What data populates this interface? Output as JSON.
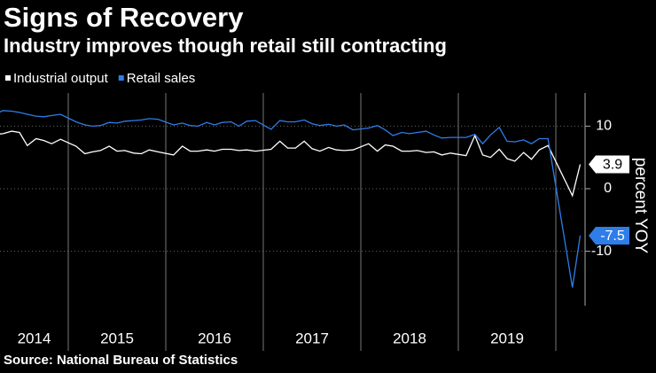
{
  "chart_data": {
    "type": "line",
    "title": "Signs of Recovery",
    "subtitle": "Industry improves though retail still contracting",
    "source": "Source: National Bureau of Statistics",
    "y_axis_label": "percent YOY",
    "x": [
      2014.25,
      2014.33,
      2014.42,
      2014.5,
      2014.58,
      2014.67,
      2014.75,
      2014.83,
      2014.92,
      2015.08,
      2015.17,
      2015.25,
      2015.33,
      2015.42,
      2015.5,
      2015.58,
      2015.67,
      2015.75,
      2015.83,
      2015.92,
      2016.08,
      2016.17,
      2016.25,
      2016.33,
      2016.42,
      2016.5,
      2016.58,
      2016.67,
      2016.75,
      2016.83,
      2016.92,
      2017.08,
      2017.17,
      2017.25,
      2017.33,
      2017.42,
      2017.5,
      2017.58,
      2017.67,
      2017.75,
      2017.83,
      2017.92,
      2018.08,
      2018.17,
      2018.25,
      2018.33,
      2018.42,
      2018.5,
      2018.58,
      2018.67,
      2018.75,
      2018.83,
      2018.92,
      2019.08,
      2019.17,
      2019.25,
      2019.33,
      2019.42,
      2019.5,
      2019.58,
      2019.67,
      2019.75,
      2019.83,
      2019.92,
      2020.17,
      2020.25
    ],
    "series": [
      {
        "name": "Industrial output",
        "color": "#ffffff",
        "values": [
          8.7,
          8.8,
          9.2,
          9.0,
          6.9,
          8.0,
          7.7,
          7.2,
          7.9,
          6.8,
          5.6,
          5.9,
          6.1,
          6.8,
          6.0,
          6.1,
          5.7,
          5.6,
          6.2,
          5.9,
          5.4,
          6.8,
          6.0,
          6.0,
          6.2,
          6.0,
          6.3,
          6.3,
          6.1,
          6.2,
          6.0,
          6.3,
          7.6,
          6.5,
          6.5,
          7.6,
          6.4,
          6.0,
          6.6,
          6.2,
          6.1,
          6.2,
          7.2,
          6.0,
          7.0,
          6.8,
          6.0,
          6.0,
          6.1,
          5.8,
          5.9,
          5.4,
          5.7,
          5.3,
          8.5,
          5.4,
          5.0,
          6.3,
          4.8,
          4.4,
          5.8,
          4.7,
          6.2,
          6.9,
          -1.1,
          3.9
        ]
      },
      {
        "name": "Retail sales",
        "color": "#2e7de9",
        "values": [
          11.9,
          12.5,
          12.4,
          12.2,
          11.9,
          11.6,
          11.5,
          11.7,
          11.9,
          10.7,
          10.2,
          10.0,
          10.1,
          10.6,
          10.5,
          10.8,
          10.9,
          11.0,
          11.2,
          11.1,
          10.2,
          10.5,
          10.1,
          10.0,
          10.6,
          10.2,
          10.6,
          10.7,
          10.0,
          10.8,
          10.9,
          9.5,
          10.9,
          10.7,
          10.7,
          11.0,
          10.4,
          10.1,
          10.3,
          10.0,
          10.2,
          9.4,
          9.7,
          10.1,
          9.4,
          8.5,
          9.0,
          8.8,
          9.0,
          9.2,
          8.6,
          8.1,
          8.2,
          8.2,
          8.7,
          7.2,
          8.6,
          9.8,
          7.6,
          7.5,
          7.8,
          7.2,
          8.0,
          8.0,
          -15.8,
          -7.5
        ]
      }
    ],
    "xlim": [
      2014.3,
      2020.3
    ],
    "xticks": [
      2014,
      2015,
      2016,
      2017,
      2018,
      2019
    ],
    "ylim": [
      -18.7,
      15.3
    ],
    "yticks": [
      10,
      0,
      -10
    ],
    "grid": true
  }
}
